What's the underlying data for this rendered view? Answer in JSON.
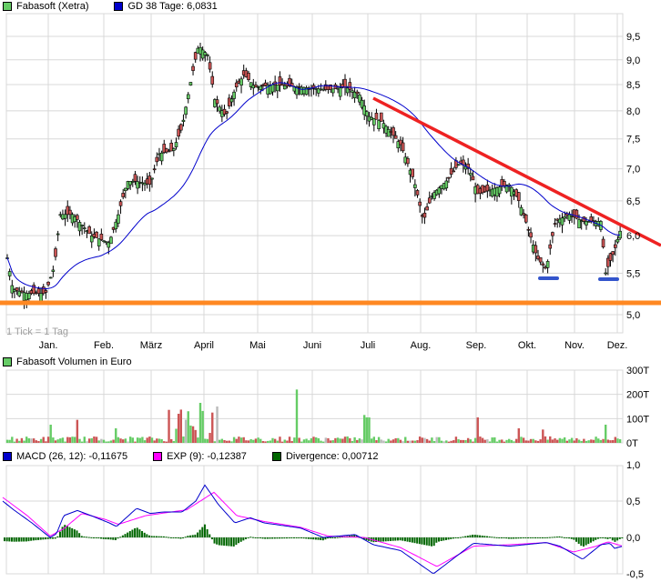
{
  "price_panel": {
    "legend": [
      {
        "label": "Fabasoft (Xetra)",
        "color": "#66cc66"
      },
      {
        "label": "GD 38 Tage: 6,0831",
        "color": "#0000cc"
      }
    ],
    "tick_note": "1 Tick = 1 Tag",
    "y_ticks": [
      "9,5",
      "9,0",
      "8,5",
      "8,0",
      "7,5",
      "7,0",
      "6,5",
      "6,0",
      "5,5",
      "5,0"
    ],
    "x_ticks": [
      "Jan.",
      "Feb.",
      "März",
      "April",
      "Mai",
      "Juni",
      "Juli",
      "Aug.",
      "Sep.",
      "Okt.",
      "Nov.",
      "Dez."
    ]
  },
  "volume_panel": {
    "legend": [
      {
        "label": "Fabasoft Volumen in Euro",
        "color": "#66cc66"
      }
    ],
    "y_ticks": [
      "300T",
      "200T",
      "100T",
      "0T"
    ]
  },
  "macd_panel": {
    "legend": [
      {
        "label": "MACD (26, 12): -0,11675",
        "color": "#0000cc"
      },
      {
        "label": "EXP (9): -0,12387",
        "color": "#ff00ff"
      },
      {
        "label": "Divergence: 0,00712",
        "color": "#006600"
      }
    ],
    "y_ticks": [
      "1,0",
      "0,5",
      "0,0",
      "-0,5"
    ]
  },
  "colors": {
    "up": "#66cc66",
    "down": "#cc5555",
    "neutral": "#bbbbbb",
    "sma": "#0000cc",
    "trendline": "#ee2222",
    "support": "#ff8822",
    "bottom_marker": "#3355cc",
    "macd": "#0000cc",
    "signal": "#ff00ff",
    "divergence": "#006600",
    "grid": "#d8d8d8"
  },
  "chart_data": [
    {
      "type": "line",
      "title": "Fabasoft (Xetra)",
      "subtitle": "1 Tick = 1 Tag",
      "xlabel": "",
      "ylabel": "",
      "categories": [
        "Dez.",
        "Jan.",
        "Feb.",
        "März",
        "April",
        "Mai",
        "Juni",
        "Juli",
        "Aug.",
        "Sep.",
        "Okt.",
        "Nov.",
        "Dez."
      ],
      "series": [
        {
          "name": "Fabasoft (Xetra) close (approx, month-start)",
          "values": [
            5.5,
            5.3,
            6.0,
            6.3,
            9.2,
            8.3,
            8.4,
            8.2,
            6.9,
            6.7,
            5.8,
            6.3,
            6.1
          ]
        },
        {
          "name": "GD 38 Tage",
          "values": [
            5.1,
            5.3,
            5.7,
            5.9,
            7.3,
            8.3,
            8.5,
            8.4,
            7.8,
            6.8,
            6.5,
            6.3,
            6.08
          ]
        },
        {
          "name": "Trendline (red)",
          "values": [
            null,
            null,
            null,
            null,
            null,
            null,
            null,
            8.2,
            7.6,
            7.0,
            6.6,
            6.3,
            6.0
          ]
        },
        {
          "name": "Support line (orange)",
          "values": [
            5.1,
            5.1,
            5.1,
            5.1,
            5.1,
            5.1,
            5.1,
            5.1,
            5.1,
            5.1,
            5.1,
            5.1,
            5.1
          ]
        }
      ],
      "ylim": [
        4.9,
        9.8
      ],
      "y_scale": "log",
      "grid": true,
      "annotations": [
        "GD 38 Tage: 6,0831",
        "double bottom ~5,45 (Okt., Nov.)"
      ]
    },
    {
      "type": "bar",
      "title": "Fabasoft Volumen in Euro",
      "categories": [
        "Jan.",
        "Feb.",
        "März",
        "April",
        "Mai",
        "Juni",
        "Juli",
        "Aug.",
        "Sep.",
        "Okt.",
        "Nov.",
        "Dez."
      ],
      "series": [
        {
          "name": "Volumen (T€, typical peak per month, approx)",
          "values": [
            75,
            95,
            190,
            165,
            90,
            220,
            205,
            120,
            105,
            90,
            75,
            80
          ]
        }
      ],
      "ylim": [
        0,
        300
      ],
      "ylabel": "T"
    },
    {
      "type": "line",
      "title": "MACD",
      "categories": [
        "Dez.",
        "Jan.",
        "Feb.",
        "März",
        "April",
        "Mai",
        "Juni",
        "Juli",
        "Aug.",
        "Sep.",
        "Okt.",
        "Nov.",
        "Dez."
      ],
      "series": [
        {
          "name": "MACD (26, 12)",
          "values": [
            0.25,
            0.05,
            0.22,
            0.2,
            0.65,
            0.05,
            0.0,
            -0.05,
            -0.45,
            -0.1,
            -0.1,
            -0.07,
            -0.117
          ]
        },
        {
          "name": "EXP (9)",
          "values": [
            0.3,
            0.02,
            0.15,
            0.18,
            0.55,
            0.1,
            0.0,
            -0.08,
            -0.32,
            -0.08,
            -0.12,
            -0.05,
            -0.124
          ]
        },
        {
          "name": "Divergence",
          "values": [
            -0.05,
            0.04,
            0.06,
            0.03,
            0.1,
            -0.13,
            -0.02,
            -0.05,
            0.09,
            -0.02,
            -0.06,
            0.05,
            0.007
          ]
        }
      ],
      "ylim": [
        -0.5,
        1.0
      ],
      "legend": [
        "MACD (26, 12): -0,11675",
        "EXP (9): -0,12387",
        "Divergence: 0,00712"
      ]
    }
  ]
}
